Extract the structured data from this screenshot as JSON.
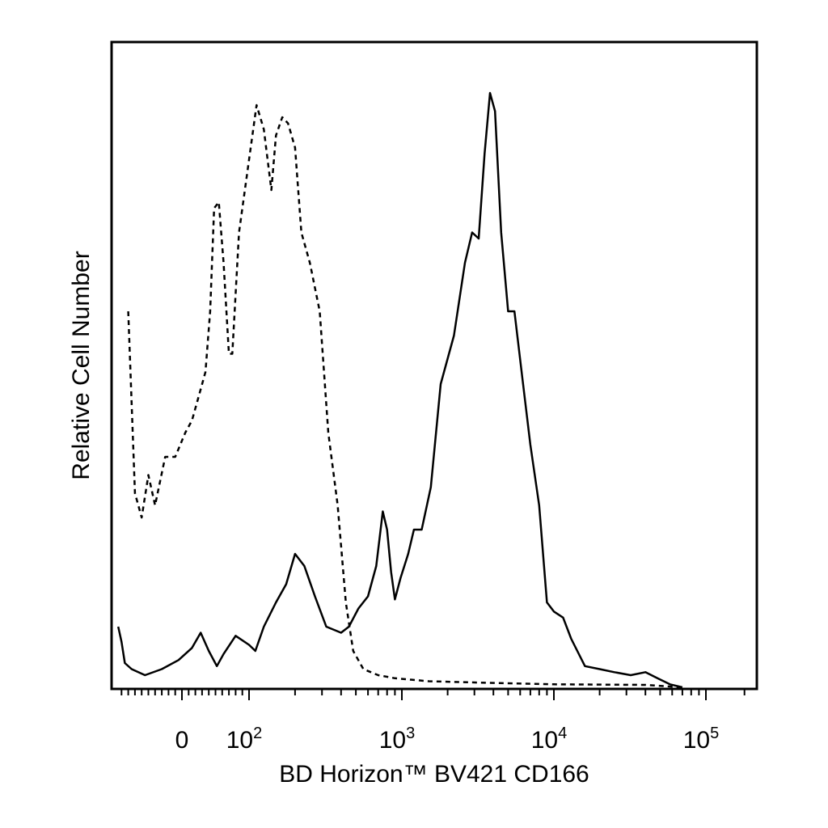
{
  "chart_data": {
    "type": "line",
    "xlabel": "BD Horizon™ BV421 CD166",
    "ylabel": "Relative Cell Number",
    "x_scale": "biexponential (logicle)",
    "xlim": [
      -100,
      250000
    ],
    "tick_labels": [
      {
        "value": 0,
        "text": "0"
      },
      {
        "value": 100,
        "base": "10",
        "exp": "2"
      },
      {
        "value": 1000,
        "base": "10",
        "exp": "3"
      },
      {
        "value": 10000,
        "base": "10",
        "exp": "4"
      },
      {
        "value": 100000,
        "base": "10",
        "exp": "5"
      }
    ],
    "grid": false,
    "legend": "none",
    "series": [
      {
        "style": "dashed",
        "color": "#000000",
        "points": [
          [
            -80,
            0.62
          ],
          [
            -70,
            0.32
          ],
          [
            -60,
            0.28
          ],
          [
            -50,
            0.35
          ],
          [
            -40,
            0.3
          ],
          [
            -25,
            0.38
          ],
          [
            -10,
            0.38
          ],
          [
            5,
            0.42
          ],
          [
            15,
            0.44
          ],
          [
            25,
            0.48
          ],
          [
            35,
            0.52
          ],
          [
            42,
            0.62
          ],
          [
            48,
            0.79
          ],
          [
            55,
            0.8
          ],
          [
            62,
            0.7
          ],
          [
            70,
            0.55
          ],
          [
            75,
            0.55
          ],
          [
            85,
            0.75
          ],
          [
            100,
            0.87
          ],
          [
            112,
            0.96
          ],
          [
            125,
            0.92
          ],
          [
            140,
            0.82
          ],
          [
            150,
            0.91
          ],
          [
            165,
            0.94
          ],
          [
            180,
            0.93
          ],
          [
            200,
            0.89
          ],
          [
            220,
            0.75
          ],
          [
            250,
            0.7
          ],
          [
            290,
            0.62
          ],
          [
            330,
            0.42
          ],
          [
            380,
            0.3
          ],
          [
            430,
            0.14
          ],
          [
            480,
            0.06
          ],
          [
            560,
            0.03
          ],
          [
            700,
            0.02
          ],
          [
            900,
            0.015
          ],
          [
            1500,
            0.01
          ],
          [
            3000,
            0.008
          ],
          [
            10000,
            0.005
          ],
          [
            40000,
            0.004
          ],
          [
            70000,
            0.0
          ]
        ]
      },
      {
        "style": "solid",
        "color": "#000000",
        "points": [
          [
            -95,
            0.1
          ],
          [
            -90,
            0.075
          ],
          [
            -85,
            0.04
          ],
          [
            -75,
            0.03
          ],
          [
            -55,
            0.02
          ],
          [
            -30,
            0.03
          ],
          [
            -5,
            0.045
          ],
          [
            15,
            0.065
          ],
          [
            28,
            0.09
          ],
          [
            40,
            0.06
          ],
          [
            52,
            0.035
          ],
          [
            62,
            0.055
          ],
          [
            80,
            0.085
          ],
          [
            100,
            0.07
          ],
          [
            110,
            0.06
          ],
          [
            125,
            0.1
          ],
          [
            150,
            0.14
          ],
          [
            175,
            0.17
          ],
          [
            200,
            0.22
          ],
          [
            230,
            0.2
          ],
          [
            270,
            0.15
          ],
          [
            320,
            0.1
          ],
          [
            400,
            0.09
          ],
          [
            450,
            0.1
          ],
          [
            520,
            0.13
          ],
          [
            600,
            0.15
          ],
          [
            680,
            0.2
          ],
          [
            750,
            0.29
          ],
          [
            800,
            0.26
          ],
          [
            850,
            0.19
          ],
          [
            900,
            0.145
          ],
          [
            980,
            0.18
          ],
          [
            1100,
            0.22
          ],
          [
            1200,
            0.26
          ],
          [
            1350,
            0.26
          ],
          [
            1550,
            0.33
          ],
          [
            1800,
            0.5
          ],
          [
            2200,
            0.58
          ],
          [
            2600,
            0.7
          ],
          [
            2900,
            0.75
          ],
          [
            3200,
            0.74
          ],
          [
            3500,
            0.88
          ],
          [
            3800,
            0.98
          ],
          [
            4100,
            0.95
          ],
          [
            4500,
            0.75
          ],
          [
            5000,
            0.62
          ],
          [
            5500,
            0.62
          ],
          [
            6200,
            0.51
          ],
          [
            7000,
            0.4
          ],
          [
            8000,
            0.3
          ],
          [
            9000,
            0.14
          ],
          [
            10000,
            0.125
          ],
          [
            11500,
            0.115
          ],
          [
            13000,
            0.08
          ],
          [
            16000,
            0.035
          ],
          [
            20000,
            0.03
          ],
          [
            25000,
            0.025
          ],
          [
            32000,
            0.02
          ],
          [
            40000,
            0.025
          ],
          [
            48000,
            0.015
          ],
          [
            58000,
            0.005
          ],
          [
            70000,
            0.0
          ]
        ]
      }
    ]
  }
}
